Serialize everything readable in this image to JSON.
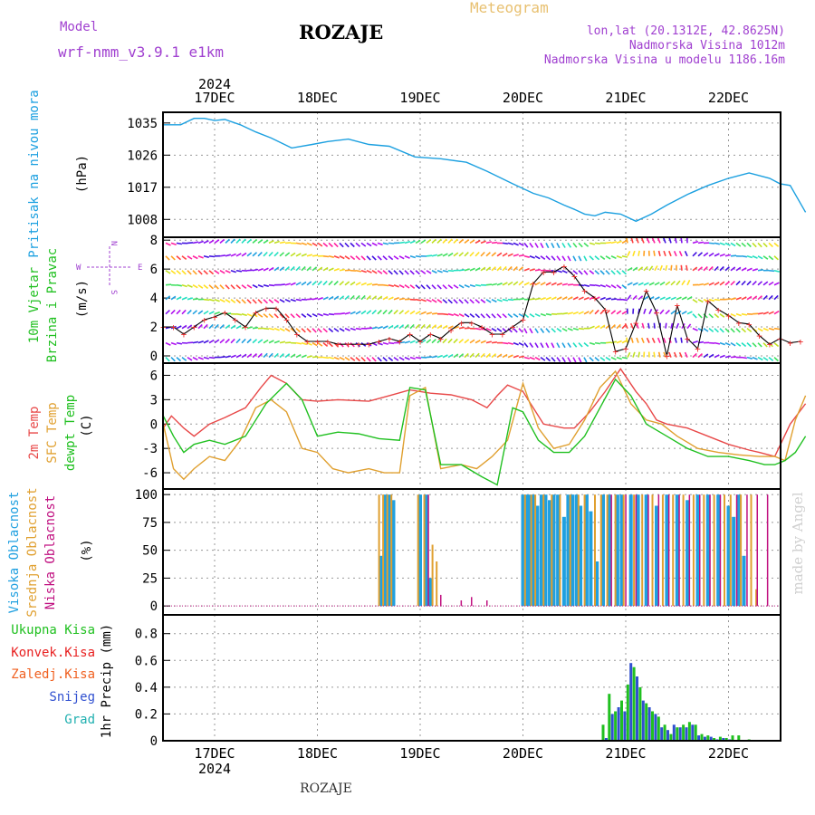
{
  "header": {
    "model_label": "Model",
    "model_name": "wrf-nmm_v3.9.1 e1km",
    "station": "ROZAJE",
    "title": "Meteogram",
    "lonlat": "lon,lat (20.1312E, 42.8625N)",
    "elevation": "Nadmorska Visina 1012m",
    "model_elevation": "Nadmorska Visina u modelu 1186.16m",
    "footer_station": "ROZAJE",
    "watermark": "made by Angel"
  },
  "colors": {
    "pressure": "#1ca0e0",
    "temp2m": "#e84848",
    "sfc": "#e0a030",
    "dewpt": "#20c020",
    "high": "#20a0e0",
    "mid": "#e0a030",
    "low": "#c01080",
    "total": "#20c020",
    "conv": "#e82020",
    "snow": "#3050d0",
    "grad": "#20b0b0",
    "freezing": "#f06020",
    "model_label": "#a040d0",
    "title": "#e8c070"
  },
  "chart_data": [
    {
      "id": "pressure",
      "type": "line",
      "ylabel": [
        "Pritisak na nivou mora",
        "(hPa)"
      ],
      "yticks": [
        1008,
        1017,
        1026,
        1035
      ],
      "ylim": [
        1003,
        1038
      ],
      "x_top_labels": [
        "17DEC",
        "18DEC",
        "19DEC",
        "20DEC",
        "21DEC",
        "22DEC"
      ],
      "year": "2024",
      "series": [
        {
          "color_key": "pressure",
          "x": [
            -0.5,
            -0.33,
            -0.2,
            -0.1,
            0.0,
            0.1,
            0.25,
            0.4,
            0.55,
            0.75,
            0.95,
            1.1,
            1.3,
            1.5,
            1.7,
            1.95,
            2.2,
            2.45,
            2.65,
            2.9,
            3.1,
            3.25,
            3.4,
            3.5,
            3.6,
            3.7,
            3.8,
            3.95,
            4.1,
            4.25,
            4.4,
            4.6,
            4.8,
            5.0,
            5.2,
            5.4,
            5.5,
            5.6,
            5.75
          ],
          "y": [
            1034.5,
            1034.5,
            1036.3,
            1036.3,
            1035.7,
            1036.0,
            1034.5,
            1032.5,
            1030.8,
            1028.0,
            1029.0,
            1029.8,
            1030.5,
            1029.0,
            1028.5,
            1025.5,
            1025.0,
            1024.0,
            1021.5,
            1018.0,
            1015.3,
            1014.0,
            1012.0,
            1010.8,
            1009.5,
            1009.0,
            1010.0,
            1009.5,
            1007.5,
            1009.5,
            1012.0,
            1015.0,
            1017.5,
            1019.5,
            1021.0,
            1019.5,
            1018.0,
            1017.5,
            1010.0
          ]
        }
      ]
    },
    {
      "id": "wind",
      "type": "scatter",
      "ylabel": [
        "10m Vjetar",
        "Brzina i Pravac",
        "(m/s)"
      ],
      "compass": [
        "N",
        "W",
        "E",
        "S"
      ],
      "yticks": [
        0,
        2,
        4,
        6,
        8
      ],
      "ylim": [
        -0.5,
        8.2
      ],
      "speed": {
        "x": [
          -0.5,
          -0.4,
          -0.3,
          -0.2,
          -0.1,
          0.0,
          0.1,
          0.2,
          0.3,
          0.4,
          0.5,
          0.6,
          0.7,
          0.8,
          0.9,
          1.0,
          1.1,
          1.2,
          1.3,
          1.4,
          1.5,
          1.6,
          1.7,
          1.8,
          1.9,
          2.0,
          2.1,
          2.2,
          2.3,
          2.4,
          2.5,
          2.6,
          2.7,
          2.8,
          2.9,
          3.0,
          3.1,
          3.2,
          3.3,
          3.4,
          3.5,
          3.6,
          3.7,
          3.8,
          3.9,
          4.0,
          4.1,
          4.2,
          4.3,
          4.4,
          4.5,
          4.6,
          4.7,
          4.8,
          4.9,
          5.0,
          5.1,
          5.2,
          5.3,
          5.4,
          5.5,
          5.6,
          5.7
        ],
        "y": [
          2.0,
          2.0,
          1.5,
          2.0,
          2.5,
          2.7,
          3.0,
          2.5,
          2.0,
          3.0,
          3.3,
          3.3,
          2.5,
          1.5,
          1.0,
          1.0,
          1.0,
          0.8,
          0.8,
          0.8,
          0.8,
          1.0,
          1.2,
          1.0,
          1.5,
          1.0,
          1.5,
          1.2,
          1.8,
          2.3,
          2.3,
          2.0,
          1.5,
          1.5,
          2.0,
          2.5,
          5.0,
          5.8,
          5.8,
          6.2,
          5.5,
          4.5,
          4.0,
          3.2,
          0.3,
          0.5,
          2.3,
          4.5,
          3.0,
          0.0,
          3.5,
          1.2,
          0.5,
          3.8,
          3.2,
          2.8,
          2.3,
          2.2,
          1.4,
          0.8,
          1.2,
          0.9,
          1.0
        ]
      },
      "arrow_colors": [
        "#4010e0",
        "#8010f0",
        "#b010f0",
        "#20a0e0",
        "#20e0c0",
        "#40e060",
        "#c0e020",
        "#ffe020",
        "#ffa020",
        "#ff4040",
        "#ff20a0"
      ]
    },
    {
      "id": "temperature",
      "type": "line",
      "ylabel": [
        "2m Temp",
        "SFC Temp",
        "dewpt Temp",
        "(C)"
      ],
      "yticks": [
        -6,
        -3,
        0,
        3,
        6
      ],
      "ylim": [
        -8,
        7.5
      ],
      "series": [
        {
          "name": "2m Temp",
          "color_key": "temp2m",
          "x": [
            -0.5,
            -0.42,
            -0.3,
            -0.2,
            -0.05,
            0.1,
            0.3,
            0.45,
            0.55,
            0.7,
            0.85,
            1.0,
            1.2,
            1.5,
            1.7,
            1.9,
            2.1,
            2.3,
            2.5,
            2.65,
            2.75,
            2.85,
            3.0,
            3.2,
            3.4,
            3.5,
            3.65,
            3.8,
            3.95,
            4.1,
            4.2,
            4.3,
            4.4,
            4.6,
            4.8,
            5.0,
            5.2,
            5.3,
            5.45,
            5.6,
            5.75
          ],
          "y": [
            -0.5,
            1.0,
            -0.5,
            -1.5,
            0.0,
            0.8,
            2.0,
            4.5,
            6.0,
            5.0,
            3.0,
            2.8,
            3.0,
            2.8,
            3.5,
            4.2,
            3.8,
            3.6,
            3.0,
            2.0,
            3.5,
            4.8,
            4.0,
            0.0,
            -0.5,
            -0.5,
            1.5,
            4.0,
            6.8,
            4.0,
            2.5,
            0.5,
            0.0,
            -0.5,
            -1.5,
            -2.5,
            -3.2,
            -3.5,
            -4.0,
            0.0,
            2.5
          ]
        },
        {
          "name": "SFC Temp",
          "color_key": "sfc",
          "x": [
            -0.5,
            -0.4,
            -0.3,
            -0.2,
            -0.05,
            0.1,
            0.25,
            0.4,
            0.55,
            0.7,
            0.85,
            1.0,
            1.15,
            1.3,
            1.5,
            1.65,
            1.8,
            1.9,
            2.05,
            2.2,
            2.4,
            2.55,
            2.7,
            2.85,
            3.0,
            3.15,
            3.3,
            3.45,
            3.6,
            3.75,
            3.9,
            4.05,
            4.2,
            4.35,
            4.5,
            4.7,
            4.9,
            5.1,
            5.3,
            5.45,
            5.55,
            5.65,
            5.75
          ],
          "y": [
            0.0,
            -5.5,
            -6.8,
            -5.5,
            -4.0,
            -4.5,
            -2.0,
            2.0,
            3.0,
            1.5,
            -3.0,
            -3.5,
            -5.5,
            -6.0,
            -5.5,
            -6.0,
            -6.0,
            3.5,
            4.5,
            -5.5,
            -5.0,
            -5.5,
            -4.0,
            -2.0,
            5.0,
            -0.5,
            -3.0,
            -2.5,
            0.5,
            4.5,
            6.5,
            2.5,
            0.5,
            0.0,
            -1.5,
            -3.0,
            -3.5,
            -3.8,
            -4.0,
            -4.0,
            -4.5,
            0.5,
            3.5
          ]
        },
        {
          "name": "dewpt Temp",
          "color_key": "dewpt",
          "x": [
            -0.5,
            -0.4,
            -0.3,
            -0.2,
            -0.05,
            0.1,
            0.3,
            0.5,
            0.7,
            0.85,
            1.0,
            1.2,
            1.4,
            1.6,
            1.8,
            1.9,
            2.05,
            2.2,
            2.4,
            2.6,
            2.75,
            2.9,
            3.0,
            3.15,
            3.3,
            3.45,
            3.6,
            3.75,
            3.9,
            4.05,
            4.2,
            4.4,
            4.6,
            4.8,
            5.0,
            5.2,
            5.35,
            5.45,
            5.55,
            5.65,
            5.75
          ],
          "y": [
            1.0,
            -1.5,
            -3.5,
            -2.5,
            -2.0,
            -2.5,
            -1.5,
            2.5,
            5.0,
            3.0,
            -1.5,
            -1.0,
            -1.2,
            -1.8,
            -2.0,
            4.5,
            4.2,
            -5.0,
            -5.0,
            -6.5,
            -7.5,
            2.0,
            1.5,
            -2.0,
            -3.5,
            -3.5,
            -1.5,
            2.0,
            5.5,
            3.5,
            0.0,
            -1.5,
            -3.0,
            -4.0,
            -4.0,
            -4.5,
            -5.0,
            -5.0,
            -4.5,
            -3.5,
            -1.5
          ]
        }
      ]
    },
    {
      "id": "clouds",
      "type": "bar",
      "ylabel": [
        "Visoka Oblacnost",
        "Srednja Oblacnost",
        "Niska Oblacnost",
        "(%)"
      ],
      "yticks": [
        0,
        25,
        50,
        75,
        100
      ],
      "ylim": [
        -8,
        105
      ],
      "series": [
        {
          "name": "Visoka Oblacnost",
          "color_key": "high",
          "x": [
            1.62,
            1.66,
            1.7,
            1.74,
            2.0,
            2.06,
            2.1,
            3.0,
            3.03,
            3.06,
            3.1,
            3.14,
            3.18,
            3.22,
            3.26,
            3.3,
            3.34,
            3.4,
            3.44,
            3.48,
            3.52,
            3.56,
            3.62,
            3.66,
            3.72,
            3.78,
            3.84,
            3.92,
            3.96,
            4.05,
            4.12,
            4.2,
            4.3,
            4.4,
            4.5,
            4.6,
            4.7,
            4.8,
            4.9,
            5.0,
            5.05,
            5.1,
            5.15
          ],
          "y": [
            45,
            100,
            100,
            95,
            100,
            100,
            25,
            100,
            100,
            100,
            100,
            90,
            100,
            100,
            95,
            100,
            100,
            80,
            100,
            100,
            100,
            90,
            100,
            85,
            40,
            100,
            100,
            100,
            100,
            100,
            100,
            100,
            90,
            100,
            100,
            95,
            100,
            100,
            100,
            90,
            80,
            100,
            45
          ]
        },
        {
          "name": "Srednja Oblacnost",
          "color_key": "mid",
          "x": [
            1.6,
            1.64,
            1.68,
            1.72,
            1.98,
            2.04,
            2.12,
            2.16,
            3.02,
            3.08,
            3.12,
            3.2,
            3.28,
            3.36,
            3.46,
            3.54,
            3.6,
            3.7,
            3.76,
            3.82,
            3.9,
            3.98,
            4.08,
            4.16,
            4.26,
            4.36,
            4.46,
            4.56,
            4.66,
            4.76,
            4.86,
            4.96,
            5.02,
            5.12,
            5.22,
            5.27
          ],
          "y": [
            100,
            100,
            100,
            100,
            100,
            100,
            55,
            40,
            100,
            100,
            100,
            100,
            100,
            100,
            100,
            100,
            100,
            100,
            100,
            100,
            100,
            100,
            100,
            100,
            100,
            100,
            100,
            100,
            100,
            100,
            100,
            100,
            100,
            100,
            100,
            15
          ]
        },
        {
          "name": "Niska Oblacnost",
          "color_key": "low",
          "x": [
            2.08,
            2.2,
            2.4,
            2.5,
            2.65,
            3.86,
            4.0,
            4.1,
            4.22,
            4.32,
            4.42,
            4.52,
            4.62,
            4.72,
            4.82,
            4.92,
            5.08,
            5.18,
            5.28,
            5.38
          ],
          "y": [
            100,
            10,
            5,
            8,
            5,
            100,
            100,
            100,
            100,
            100,
            100,
            100,
            100,
            100,
            100,
            100,
            100,
            100,
            100,
            100
          ]
        }
      ]
    },
    {
      "id": "precip",
      "type": "bar",
      "ylabel": [
        "1hr Precip (mm)"
      ],
      "legend": [
        "Ukupna Kisa",
        "Konvek.Kisa",
        "Zaledj.Kisa",
        "Snijeg",
        "Grad"
      ],
      "yticks": [
        0,
        0.2,
        0.4,
        0.6,
        0.8
      ],
      "ylim": [
        0,
        0.94
      ],
      "x_bottom_labels": [
        "17DEC",
        "18DEC",
        "19DEC",
        "20DEC",
        "21DEC",
        "22DEC"
      ],
      "year": "2024",
      "series": [
        {
          "name": "Ukupna Kisa",
          "color_key": "total",
          "x": [
            3.78,
            3.84,
            3.9,
            3.96,
            4.02,
            4.08,
            4.14,
            4.2,
            4.26,
            4.32,
            4.38,
            4.44,
            4.5,
            4.56,
            4.62,
            4.68,
            4.74,
            4.8,
            4.86,
            4.92,
            4.98,
            5.04,
            5.1,
            5.2
          ],
          "y": [
            0.12,
            0.35,
            0.22,
            0.3,
            0.42,
            0.55,
            0.4,
            0.28,
            0.22,
            0.18,
            0.12,
            0.05,
            0.1,
            0.12,
            0.14,
            0.12,
            0.05,
            0.04,
            0.02,
            0.03,
            0.02,
            0.04,
            0.04,
            0.01
          ]
        },
        {
          "name": "Snijeg",
          "color_key": "snow",
          "x": [
            3.81,
            3.87,
            3.93,
            3.99,
            4.05,
            4.11,
            4.17,
            4.23,
            4.29,
            4.35,
            4.41,
            4.47,
            4.53,
            4.59,
            4.65,
            4.71,
            4.77,
            4.83,
            4.89,
            4.95,
            5.01
          ],
          "y": [
            0.02,
            0.2,
            0.25,
            0.22,
            0.58,
            0.48,
            0.3,
            0.25,
            0.2,
            0.1,
            0.08,
            0.12,
            0.1,
            0.1,
            0.12,
            0.04,
            0.03,
            0.03,
            0.01,
            0.02,
            0.01
          ]
        }
      ]
    }
  ]
}
